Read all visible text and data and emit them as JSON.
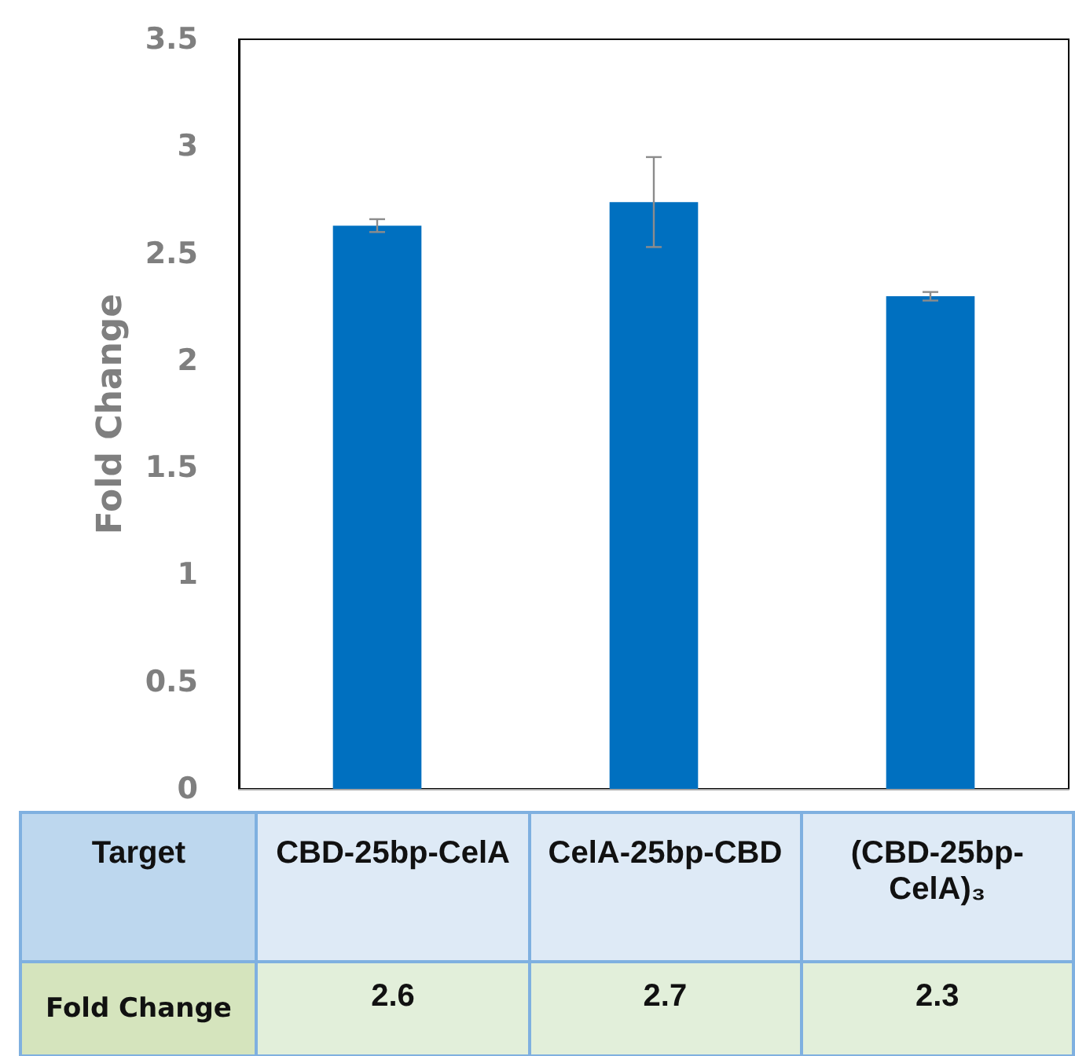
{
  "chart_data": {
    "type": "bar",
    "ylabel": "Fold Change",
    "xlabel": "Target",
    "annotations": [
      "Fold Change"
    ],
    "categories": [
      "CBD-25bp-CelA",
      "CelA-25bp-CBD",
      "(CBD-25bp-CelA)₃"
    ],
    "values": [
      2.63,
      2.74,
      2.3
    ],
    "errors": [
      0.03,
      0.21,
      0.02
    ],
    "value_labels": [
      "2.6",
      "2.7",
      "2.3"
    ],
    "color": "#0070c0",
    "ylim": [
      0,
      3.5
    ],
    "yticks": [
      0,
      0.5,
      1,
      1.5,
      2,
      2.5,
      3,
      3.5
    ],
    "grid": false
  }
}
